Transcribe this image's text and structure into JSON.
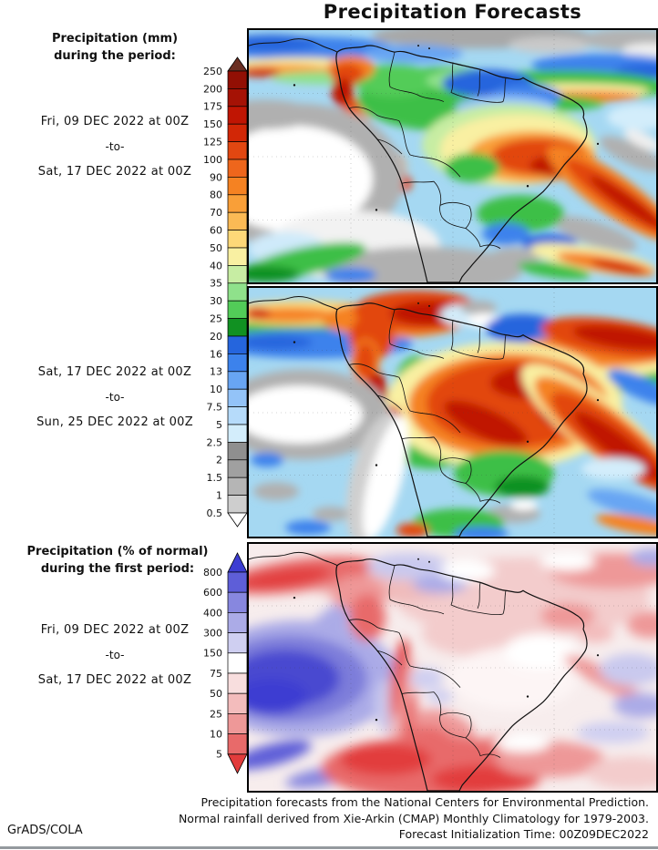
{
  "title": "Precipitation Forecasts",
  "credit": "GrADS/COLA",
  "caption": {
    "line1": "Precipitation forecasts from the National Centers for Environmental Prediction.",
    "line2": "Normal rainfall derived from Xie-Arkin (CMAP) Monthly Climatology for 1979-2003.",
    "line3": "Forecast Initialization Time: 00Z09DEC2022"
  },
  "panels": [
    {
      "heading1": "Precipitation (mm)",
      "heading2": "during the period:",
      "date_from": "Fri, 09 DEC 2022 at 00Z",
      "to_label": "-to-",
      "date_to": "Sat, 17 DEC 2022 at 00Z"
    },
    {
      "date_from": "Sat, 17 DEC 2022 at 00Z",
      "to_label": "-to-",
      "date_to": "Sun, 25 DEC 2022 at 00Z"
    },
    {
      "heading1": "Precipitation (% of normal)",
      "heading2": "during the first period:",
      "date_from": "Fri, 09 DEC 2022 at 00Z",
      "to_label": "-to-",
      "date_to": "Sat, 17 DEC 2022 at 00Z"
    }
  ],
  "colorbars": [
    {
      "name": "precipitation-mm",
      "unit": "mm",
      "labels": [
        "250",
        "200",
        "175",
        "150",
        "125",
        "100",
        "90",
        "80",
        "70",
        "60",
        "50",
        "40",
        "35",
        "30",
        "25",
        "20",
        "16",
        "13",
        "10",
        "7.5",
        "5",
        "2.5",
        "2",
        "1.5",
        "1",
        "0.5"
      ],
      "colors": [
        "#6b2f23",
        "#920f04",
        "#a51205",
        "#c01503",
        "#d22706",
        "#e24711",
        "#ee661c",
        "#f58222",
        "#f99f38",
        "#fbba55",
        "#fdd878",
        "#f9f0a2",
        "#c7eda3",
        "#8fe18b",
        "#52cc58",
        "#119122",
        "#2565dd",
        "#3c82ec",
        "#68a5f3",
        "#93c3f8",
        "#b6dbfa",
        "#d3edfb",
        "#8f8f8f",
        "#a0a0a0",
        "#b5b5b5",
        "#cecece",
        "#ffffff"
      ]
    },
    {
      "name": "precipitation-percent-of-normal",
      "unit": "% of normal",
      "labels": [
        "800",
        "600",
        "400",
        "300",
        "150",
        "75",
        "50",
        "25",
        "10",
        "5"
      ],
      "colors": [
        "#3d3dd2",
        "#5e5ed8",
        "#8787df",
        "#ababe7",
        "#cfcff1",
        "#ffffff",
        "#f8dede",
        "#f3bcbc",
        "#ee9898",
        "#e86a6a",
        "#e23c3c"
      ]
    }
  ],
  "chart_data": [
    {
      "type": "heatmap",
      "region": "South America",
      "title": "Precipitation (mm) during the period",
      "period_start": "Fri, 09 DEC 2022 at 00Z",
      "period_end": "Sat, 17 DEC 2022 at 00Z",
      "unit": "mm",
      "scale_levels": [
        0.5,
        1,
        1.5,
        2,
        2.5,
        5,
        7.5,
        10,
        13,
        16,
        20,
        25,
        30,
        35,
        40,
        50,
        60,
        70,
        80,
        90,
        100,
        125,
        150,
        175,
        200,
        250
      ],
      "legend_position": "left"
    },
    {
      "type": "heatmap",
      "region": "South America",
      "title": "Precipitation (mm) during the period",
      "period_start": "Sat, 17 DEC 2022 at 00Z",
      "period_end": "Sun, 25 DEC 2022 at 00Z",
      "unit": "mm",
      "scale_levels": [
        0.5,
        1,
        1.5,
        2,
        2.5,
        5,
        7.5,
        10,
        13,
        16,
        20,
        25,
        30,
        35,
        40,
        50,
        60,
        70,
        80,
        90,
        100,
        125,
        150,
        175,
        200,
        250
      ],
      "legend_position": "left"
    },
    {
      "type": "heatmap",
      "region": "South America",
      "title": "Precipitation (% of normal) during the first period",
      "period_start": "Fri, 09 DEC 2022 at 00Z",
      "period_end": "Sat, 17 DEC 2022 at 00Z",
      "unit": "% of normal",
      "scale_levels": [
        5,
        10,
        25,
        50,
        75,
        150,
        300,
        400,
        600,
        800
      ],
      "legend_position": "left"
    }
  ]
}
